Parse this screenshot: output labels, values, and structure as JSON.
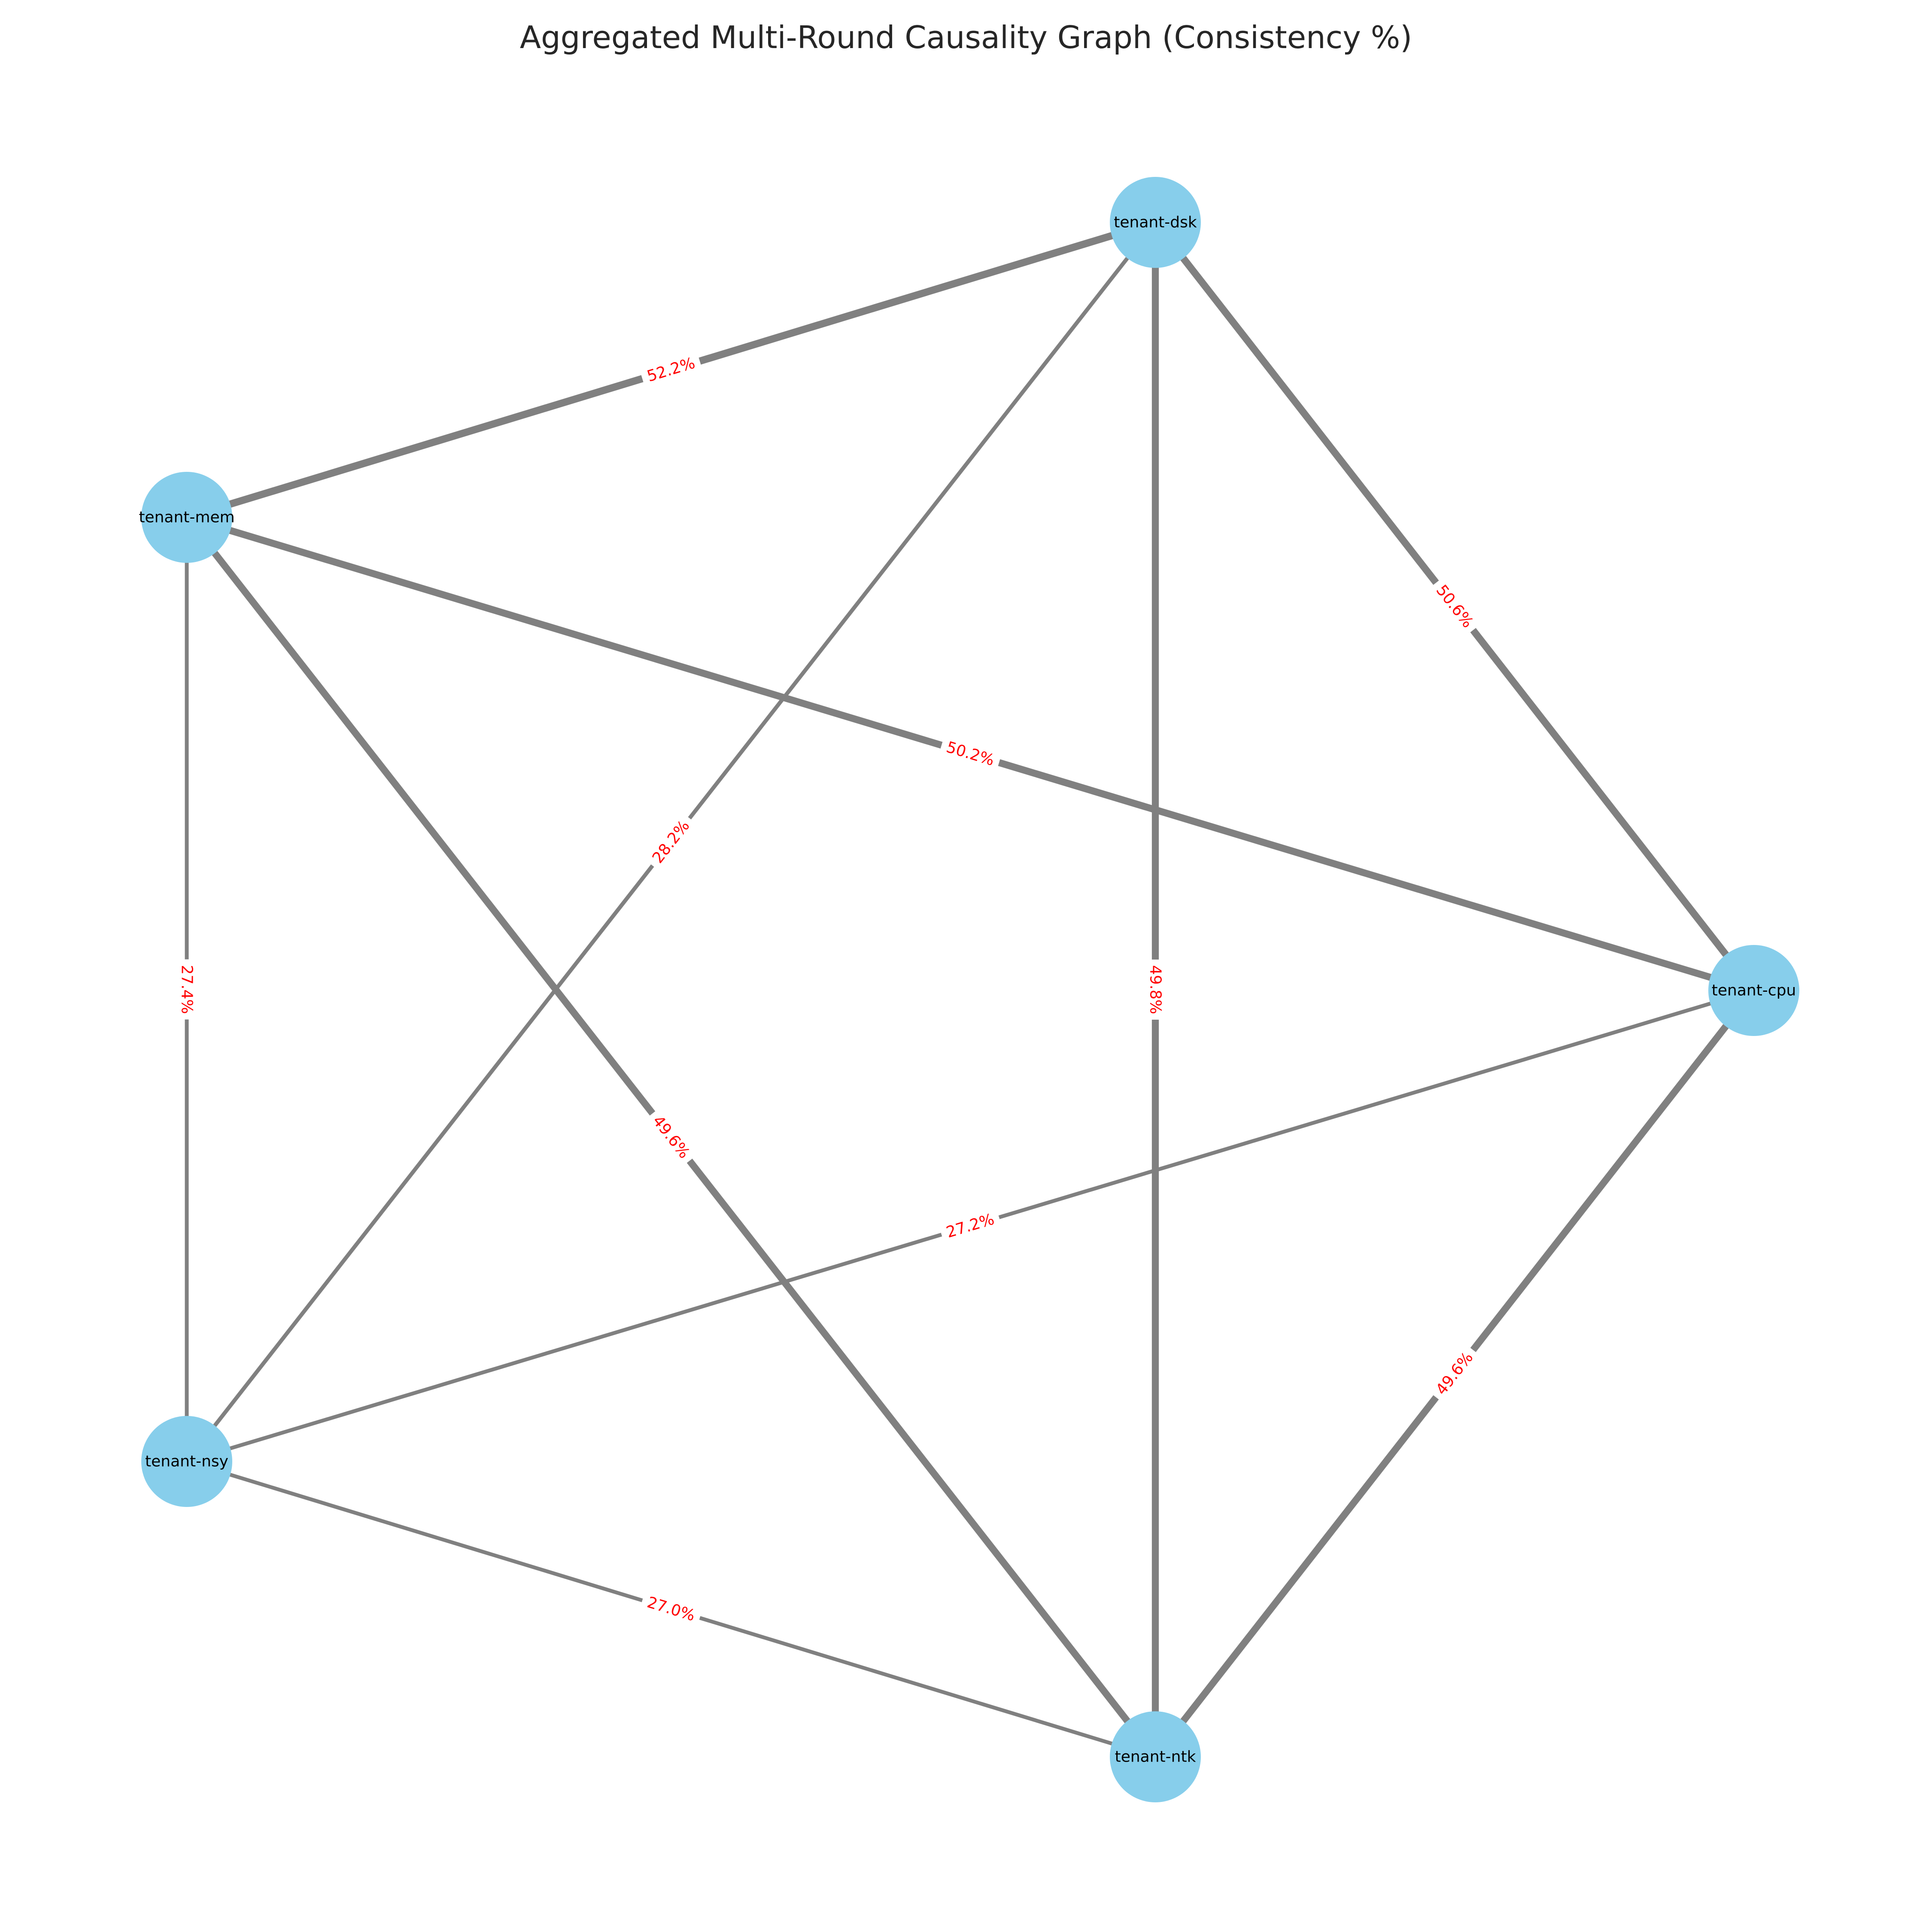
{
  "title": "Aggregated Multi-Round Causality Graph (Consistency %)",
  "colors": {
    "node_fill": "#87ceeb",
    "edge_stroke": "#808080",
    "edge_label": "#ff0000",
    "node_label": "#000000",
    "title": "#262626"
  },
  "nodes": [
    {
      "id": "dsk",
      "label": "tenant-dsk"
    },
    {
      "id": "mem",
      "label": "tenant-mem"
    },
    {
      "id": "cpu",
      "label": "tenant-cpu"
    },
    {
      "id": "nsy",
      "label": "tenant-nsy"
    },
    {
      "id": "ntk",
      "label": "tenant-ntk"
    }
  ],
  "edges": [
    {
      "source": "mem",
      "target": "dsk",
      "label": "52.2%",
      "consistency": 52.2
    },
    {
      "source": "dsk",
      "target": "cpu",
      "label": "50.6%",
      "consistency": 50.6
    },
    {
      "source": "mem",
      "target": "cpu",
      "label": "50.2%",
      "consistency": 50.2
    },
    {
      "source": "dsk",
      "target": "nsy",
      "label": "28.2%",
      "consistency": 28.2
    },
    {
      "source": "dsk",
      "target": "ntk",
      "label": "49.8%",
      "consistency": 49.8
    },
    {
      "source": "mem",
      "target": "nsy",
      "label": "27.4%",
      "consistency": 27.4
    },
    {
      "source": "mem",
      "target": "ntk",
      "label": "49.6%",
      "consistency": 49.6
    },
    {
      "source": "cpu",
      "target": "nsy",
      "label": "27.2%",
      "consistency": 27.2
    },
    {
      "source": "cpu",
      "target": "ntk",
      "label": "49.6%",
      "consistency": 49.6
    },
    {
      "source": "nsy",
      "target": "ntk",
      "label": "27.0%",
      "consistency": 27.0
    }
  ]
}
